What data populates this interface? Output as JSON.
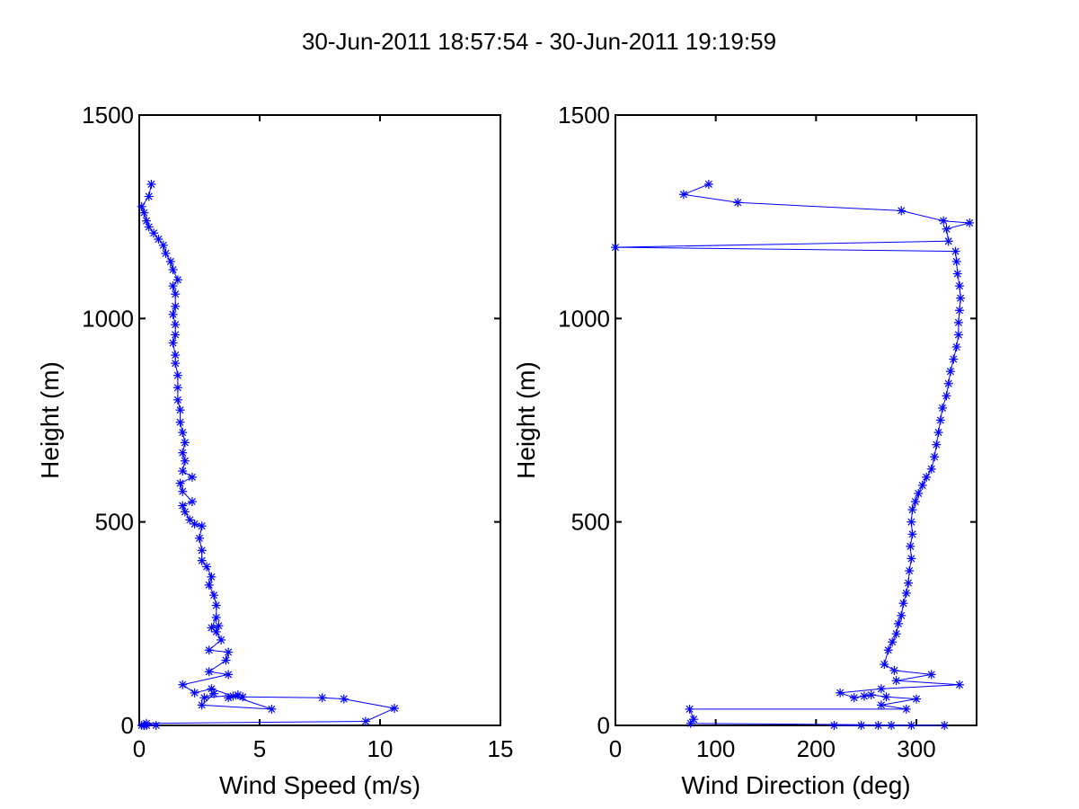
{
  "figure": {
    "title": "30-Jun-2011 18:57:54 - 30-Jun-2011 19:19:59"
  },
  "colors": {
    "series": "#0000ff",
    "axes": "#000000",
    "background": "#ffffff"
  },
  "chart_data": [
    {
      "type": "line",
      "marker": "asterisk",
      "title": "",
      "xlabel": "Wind Speed (m/s)",
      "ylabel": "Height (m)",
      "xlim": [
        0,
        15
      ],
      "ylim": [
        0,
        1500
      ],
      "xticks": [
        0,
        5,
        10,
        15
      ],
      "yticks": [
        0,
        500,
        1000,
        1500
      ],
      "xtick_labels": [
        "0",
        "5",
        "10",
        "15"
      ],
      "ytick_labels": [
        "0",
        "500",
        "1000",
        "1500"
      ],
      "series": [
        {
          "name": "Wind Speed",
          "points": [
            [
              0.3,
              0
            ],
            [
              0.2,
              0
            ],
            [
              0.1,
              0
            ],
            [
              0.7,
              0
            ],
            [
              0.3,
              5
            ],
            [
              9.4,
              10
            ],
            [
              10.6,
              42
            ],
            [
              8.5,
              65
            ],
            [
              7.6,
              68
            ],
            [
              4.3,
              70
            ],
            [
              3.9,
              72
            ],
            [
              3.7,
              68
            ],
            [
              4.1,
              75
            ],
            [
              2.7,
              68
            ],
            [
              3.1,
              78
            ],
            [
              2.6,
              50
            ],
            [
              5.5,
              40
            ],
            [
              3.0,
              90
            ],
            [
              2.3,
              80
            ],
            [
              1.8,
              100
            ],
            [
              3.7,
              125
            ],
            [
              2.9,
              132
            ],
            [
              3.6,
              160
            ],
            [
              3.7,
              180
            ],
            [
              2.9,
              185
            ],
            [
              3.4,
              210
            ],
            [
              3.2,
              230
            ],
            [
              3.3,
              245
            ],
            [
              3.0,
              240
            ],
            [
              3.2,
              265
            ],
            [
              3.2,
              295
            ],
            [
              3.1,
              320
            ],
            [
              2.9,
              345
            ],
            [
              3.0,
              365
            ],
            [
              2.8,
              390
            ],
            [
              2.6,
              405
            ],
            [
              2.6,
              430
            ],
            [
              2.5,
              460
            ],
            [
              2.6,
              490
            ],
            [
              2.3,
              495
            ],
            [
              2.1,
              505
            ],
            [
              1.9,
              525
            ],
            [
              1.8,
              540
            ],
            [
              2.2,
              550
            ],
            [
              1.8,
              575
            ],
            [
              1.7,
              595
            ],
            [
              2.2,
              610
            ],
            [
              1.8,
              625
            ],
            [
              1.9,
              650
            ],
            [
              1.8,
              670
            ],
            [
              1.9,
              695
            ],
            [
              1.8,
              720
            ],
            [
              1.7,
              745
            ],
            [
              1.7,
              775
            ],
            [
              1.6,
              800
            ],
            [
              1.6,
              830
            ],
            [
              1.6,
              860
            ],
            [
              1.5,
              890
            ],
            [
              1.5,
              910
            ],
            [
              1.4,
              940
            ],
            [
              1.5,
              960
            ],
            [
              1.5,
              985
            ],
            [
              1.4,
              1010
            ],
            [
              1.5,
              1030
            ],
            [
              1.5,
              1060
            ],
            [
              1.4,
              1080
            ],
            [
              1.6,
              1095
            ],
            [
              1.4,
              1120
            ],
            [
              1.3,
              1140
            ],
            [
              1.1,
              1160
            ],
            [
              1.0,
              1180
            ],
            [
              0.8,
              1195
            ],
            [
              0.6,
              1210
            ],
            [
              0.4,
              1225
            ],
            [
              0.3,
              1240
            ],
            [
              0.2,
              1260
            ],
            [
              0.1,
              1275
            ],
            [
              0.4,
              1300
            ],
            [
              0.5,
              1330
            ]
          ]
        }
      ]
    },
    {
      "type": "line",
      "marker": "asterisk",
      "title": "",
      "xlabel": "Wind Direction (deg)",
      "ylabel": "Height (m)",
      "xlim": [
        0,
        360
      ],
      "ylim": [
        0,
        1500
      ],
      "xticks": [
        0,
        100,
        200,
        300
      ],
      "yticks": [
        0,
        500,
        1000,
        1500
      ],
      "xtick_labels": [
        "0",
        "100",
        "200",
        "300"
      ],
      "ytick_labels": [
        "0",
        "500",
        "1000",
        "1500"
      ],
      "series": [
        {
          "name": "Wind Direction",
          "points": [
            [
              218,
              0
            ],
            [
              245,
              0
            ],
            [
              262,
              0
            ],
            [
              275,
              0
            ],
            [
              295,
              0
            ],
            [
              328,
              0
            ],
            [
              75,
              5
            ],
            [
              78,
              15
            ],
            [
              74,
              40
            ],
            [
              290,
              40
            ],
            [
              265,
              50
            ],
            [
              300,
              65
            ],
            [
              270,
              70
            ],
            [
              255,
              75
            ],
            [
              248,
              72
            ],
            [
              238,
              68
            ],
            [
              224,
              80
            ],
            [
              265,
              90
            ],
            [
              343,
              100
            ],
            [
              280,
              110
            ],
            [
              315,
              125
            ],
            [
              278,
              135
            ],
            [
              268,
              150
            ],
            [
              272,
              185
            ],
            [
              276,
              205
            ],
            [
              280,
              225
            ],
            [
              282,
              250
            ],
            [
              285,
              270
            ],
            [
              287,
              300
            ],
            [
              290,
              325
            ],
            [
              292,
              350
            ],
            [
              293,
              380
            ],
            [
              295,
              410
            ],
            [
              294,
              440
            ],
            [
              296,
              470
            ],
            [
              295,
              500
            ],
            [
              296,
              530
            ],
            [
              299,
              550
            ],
            [
              302,
              570
            ],
            [
              306,
              590
            ],
            [
              310,
              610
            ],
            [
              315,
              630
            ],
            [
              318,
              660
            ],
            [
              320,
              690
            ],
            [
              322,
              720
            ],
            [
              324,
              750
            ],
            [
              326,
              780
            ],
            [
              330,
              810
            ],
            [
              332,
              840
            ],
            [
              334,
              870
            ],
            [
              337,
              900
            ],
            [
              340,
              930
            ],
            [
              342,
              960
            ],
            [
              342,
              990
            ],
            [
              343,
              1020
            ],
            [
              344,
              1050
            ],
            [
              343,
              1080
            ],
            [
              341,
              1110
            ],
            [
              340,
              1140
            ],
            [
              339,
              1165
            ],
            [
              0,
              1175
            ],
            [
              332,
              1190
            ],
            [
              330,
              1220
            ],
            [
              353,
              1235
            ],
            [
              327,
              1240
            ],
            [
              285,
              1265
            ],
            [
              122,
              1285
            ],
            [
              68,
              1305
            ],
            [
              93,
              1330
            ]
          ]
        }
      ]
    }
  ]
}
